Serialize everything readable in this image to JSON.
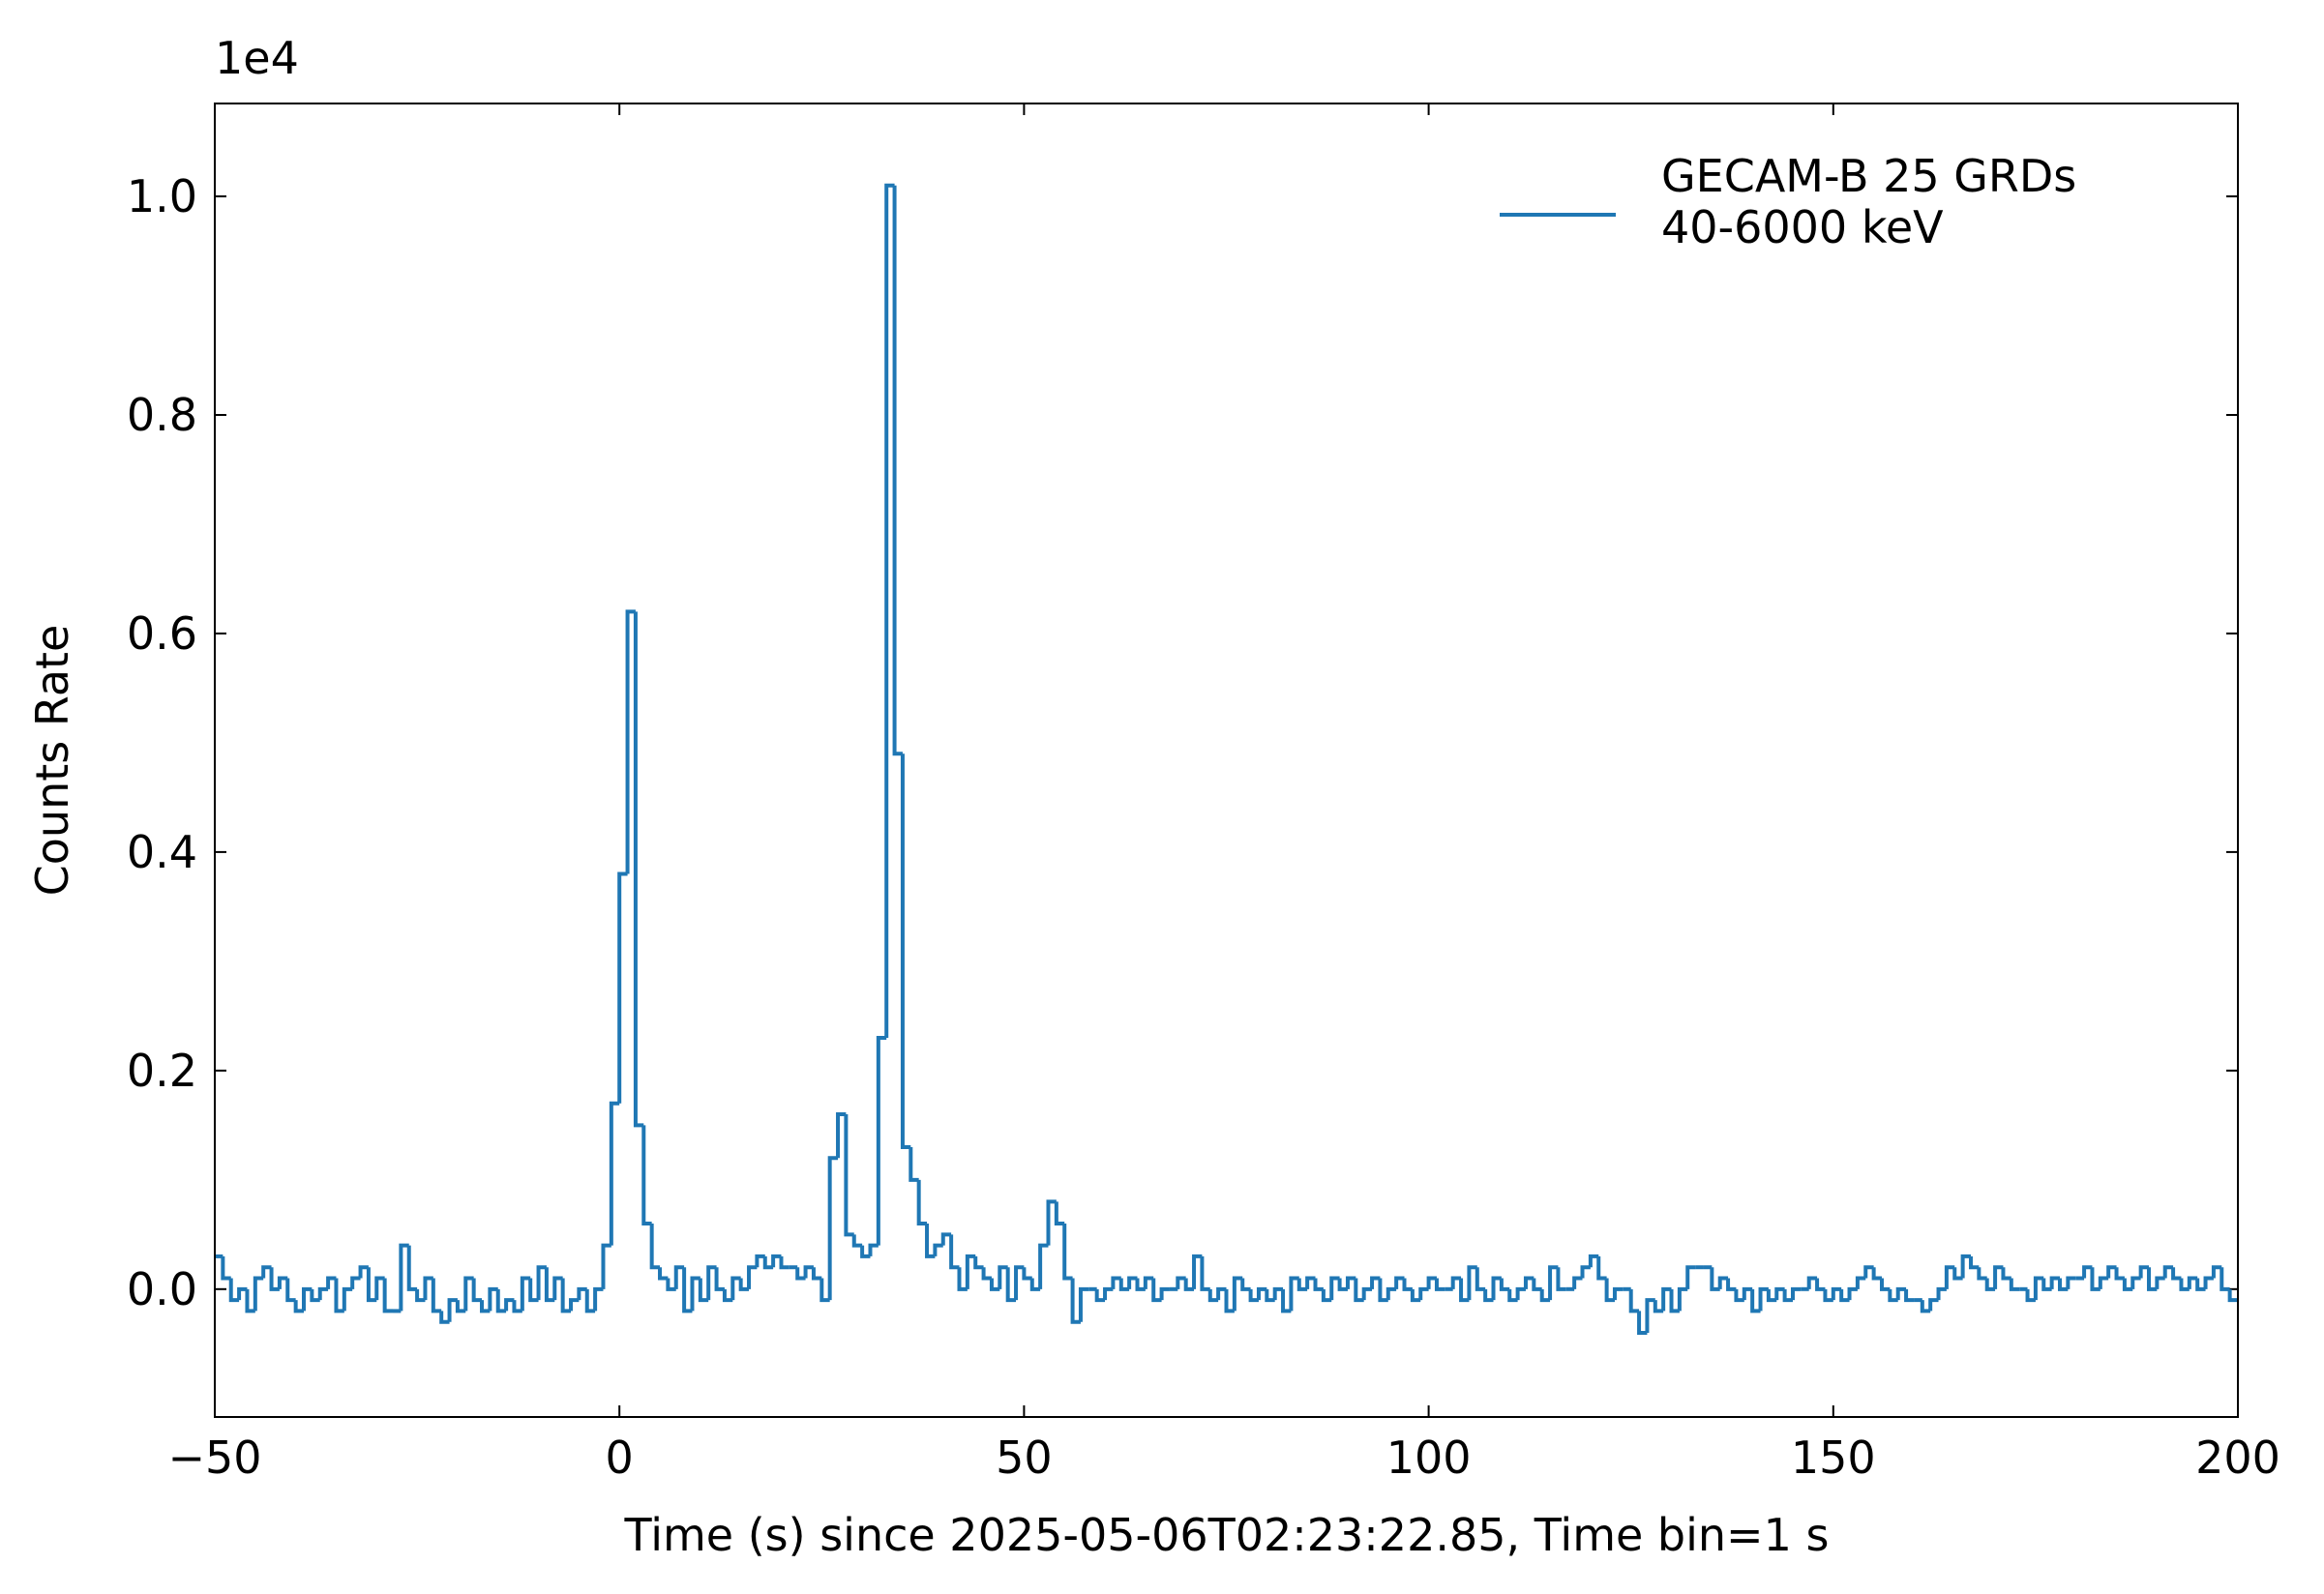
{
  "chart_data": {
    "type": "step",
    "xlabel": "Time (s) since 2025-05-06T02:23:22.85, Time bin=1 s",
    "ylabel": "Counts Rate",
    "y_offset_text": "1e4",
    "legend": "upper right",
    "xlim": [
      -50,
      200
    ],
    "xticks": [
      {
        "value": -50,
        "label": "−50"
      },
      0,
      50,
      100,
      150,
      200
    ],
    "ylim": [
      -0.117,
      1.085
    ],
    "yticks": [
      {
        "value": 0,
        "label": "0.0"
      },
      0.2,
      0.4,
      0.6,
      0.8,
      {
        "value": 1,
        "label": "1.0"
      }
    ],
    "x": [
      -50,
      -49,
      -48,
      -47,
      -46,
      -45,
      -44,
      -43,
      -42,
      -41,
      -40,
      -39,
      -38,
      -37,
      -36,
      -35,
      -34,
      -33,
      -32,
      -31,
      -30,
      -29,
      -28,
      -27,
      -26,
      -25,
      -24,
      -23,
      -22,
      -21,
      -20,
      -19,
      -18,
      -17,
      -16,
      -15,
      -14,
      -13,
      -12,
      -11,
      -10,
      -9,
      -8,
      -7,
      -6,
      -5,
      -4,
      -3,
      -2,
      -1,
      0,
      1,
      2,
      3,
      4,
      5,
      6,
      7,
      8,
      9,
      10,
      11,
      12,
      13,
      14,
      15,
      16,
      17,
      18,
      19,
      20,
      21,
      22,
      23,
      24,
      25,
      26,
      27,
      28,
      29,
      30,
      31,
      32,
      33,
      34,
      35,
      36,
      37,
      38,
      39,
      40,
      41,
      42,
      43,
      44,
      45,
      46,
      47,
      48,
      49,
      50,
      51,
      52,
      53,
      54,
      55,
      56,
      57,
      58,
      59,
      60,
      61,
      62,
      63,
      64,
      65,
      66,
      67,
      68,
      69,
      70,
      71,
      72,
      73,
      74,
      75,
      76,
      77,
      78,
      79,
      80,
      81,
      82,
      83,
      84,
      85,
      86,
      87,
      88,
      89,
      90,
      91,
      92,
      93,
      94,
      95,
      96,
      97,
      98,
      99,
      100,
      101,
      102,
      103,
      104,
      105,
      106,
      107,
      108,
      109,
      110,
      111,
      112,
      113,
      114,
      115,
      116,
      117,
      118,
      119,
      120,
      121,
      122,
      123,
      124,
      125,
      126,
      127,
      128,
      129,
      130,
      131,
      132,
      133,
      134,
      135,
      136,
      137,
      138,
      139,
      140,
      141,
      142,
      143,
      144,
      145,
      146,
      147,
      148,
      149,
      150,
      151,
      152,
      153,
      154,
      155,
      156,
      157,
      158,
      159,
      160,
      161,
      162,
      163,
      164,
      165,
      166,
      167,
      168,
      169,
      170,
      171,
      172,
      173,
      174,
      175,
      176,
      177,
      178,
      179,
      180,
      181,
      182,
      183,
      184,
      185,
      186,
      187,
      188,
      189,
      190,
      191,
      192,
      193,
      194,
      195,
      196,
      197,
      198,
      199
    ],
    "series": [
      {
        "name": "GECAM-B 25 GRDs\n40-6000 keV",
        "color": "#1f77b4",
        "values": [
          0.03,
          0.01,
          -0.01,
          0.0,
          -0.02,
          0.01,
          0.02,
          0.0,
          0.01,
          -0.01,
          -0.02,
          0.0,
          -0.01,
          0.0,
          0.01,
          -0.02,
          0.0,
          0.01,
          0.02,
          -0.01,
          0.01,
          -0.02,
          -0.02,
          0.04,
          0.0,
          -0.01,
          0.01,
          -0.02,
          -0.03,
          -0.01,
          -0.02,
          0.01,
          -0.01,
          -0.02,
          0.0,
          -0.02,
          -0.01,
          -0.02,
          0.01,
          -0.01,
          0.02,
          -0.01,
          0.01,
          -0.02,
          -0.01,
          0.0,
          -0.02,
          0.0,
          0.04,
          0.17,
          0.38,
          0.62,
          0.15,
          0.06,
          0.02,
          0.01,
          0.0,
          0.02,
          -0.02,
          0.01,
          -0.01,
          0.02,
          0.0,
          -0.01,
          0.01,
          0.0,
          0.02,
          0.03,
          0.02,
          0.03,
          0.02,
          0.02,
          0.01,
          0.02,
          0.01,
          -0.01,
          0.12,
          0.16,
          0.05,
          0.04,
          0.03,
          0.04,
          0.23,
          1.01,
          0.49,
          0.13,
          0.1,
          0.06,
          0.03,
          0.04,
          0.05,
          0.02,
          0.0,
          0.03,
          0.02,
          0.01,
          0.0,
          0.02,
          -0.01,
          0.02,
          0.01,
          0.0,
          0.04,
          0.08,
          0.06,
          0.01,
          -0.03,
          0.0,
          0.0,
          -0.01,
          0.0,
          0.01,
          0.0,
          0.01,
          0.0,
          0.01,
          -0.01,
          0.0,
          0.0,
          0.01,
          0.0,
          0.03,
          0.0,
          -0.01,
          0.0,
          -0.02,
          0.01,
          0.0,
          -0.01,
          0.0,
          -0.01,
          0.0,
          -0.02,
          0.01,
          0.0,
          0.01,
          0.0,
          -0.01,
          0.01,
          0.0,
          0.01,
          -0.01,
          0.0,
          0.01,
          -0.01,
          0.0,
          0.01,
          0.0,
          -0.01,
          0.0,
          0.01,
          0.0,
          0.0,
          0.01,
          -0.01,
          0.02,
          0.0,
          -0.01,
          0.01,
          0.0,
          -0.01,
          0.0,
          0.01,
          0.0,
          -0.01,
          0.02,
          0.0,
          0.0,
          0.01,
          0.02,
          0.03,
          0.01,
          -0.01,
          0.0,
          0.0,
          -0.02,
          -0.04,
          -0.01,
          -0.02,
          0.0,
          -0.02,
          0.0,
          0.02,
          0.02,
          0.02,
          0.0,
          0.01,
          0.0,
          -0.01,
          0.0,
          -0.02,
          0.0,
          -0.01,
          0.0,
          -0.01,
          0.0,
          0.0,
          0.01,
          0.0,
          -0.01,
          0.0,
          -0.01,
          0.0,
          0.01,
          0.02,
          0.01,
          0.0,
          -0.01,
          0.0,
          -0.01,
          -0.01,
          -0.02,
          -0.01,
          0.0,
          0.02,
          0.01,
          0.03,
          0.02,
          0.01,
          0.0,
          0.02,
          0.01,
          0.0,
          0.0,
          -0.01,
          0.01,
          0.0,
          0.01,
          0.0,
          0.01,
          0.01,
          0.02,
          0.0,
          0.01,
          0.02,
          0.01,
          0.0,
          0.01,
          0.02,
          0.0,
          0.01,
          0.02,
          0.01,
          0.0,
          0.01,
          0.0,
          0.01,
          0.02,
          0.0,
          -0.01
        ]
      }
    ]
  }
}
